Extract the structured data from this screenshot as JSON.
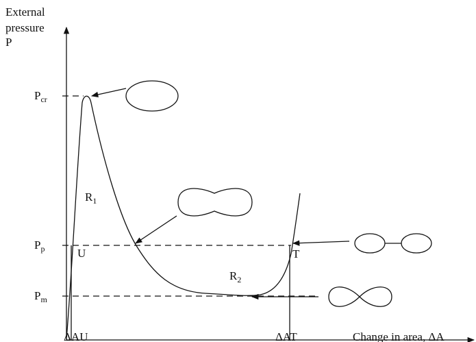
{
  "y_axis_label": [
    "External",
    "pressure",
    "P"
  ],
  "x_axis_label": "Change in area, ΔA",
  "levels": [
    {
      "main": "P",
      "sub": "cr"
    },
    {
      "main": "P",
      "sub": "p"
    },
    {
      "main": "P",
      "sub": "m"
    }
  ],
  "points": [
    "U",
    "T"
  ],
  "regions": [
    {
      "main": "R",
      "sub": "1"
    },
    {
      "main": "R",
      "sub": "2"
    }
  ],
  "x_ticks": [
    "ΔAU",
    "ΔAT"
  ]
}
